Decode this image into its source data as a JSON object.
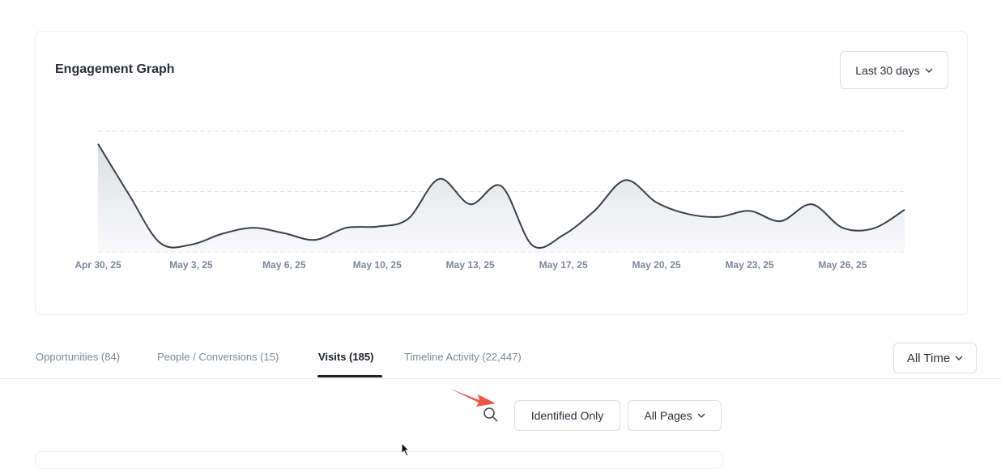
{
  "header": {
    "title": "Engagement Graph",
    "range_dropdown": "Last 30 days"
  },
  "chart_data": {
    "type": "line",
    "categories": [
      "Apr 30, 25",
      null,
      null,
      "May 3, 25",
      null,
      null,
      "May 6, 25",
      null,
      null,
      "May 10, 25",
      null,
      null,
      "May 13, 25",
      null,
      null,
      "May 17, 25",
      null,
      null,
      "May 20, 25",
      null,
      null,
      "May 23, 25",
      null,
      null,
      "May 26, 25",
      null,
      null
    ],
    "values": [
      1.79,
      0.95,
      0.15,
      0.12,
      0.3,
      0.4,
      0.31,
      0.2,
      0.4,
      0.42,
      0.55,
      1.21,
      0.79,
      1.09,
      0.11,
      0.28,
      0.68,
      1.19,
      0.82,
      0.63,
      0.58,
      0.68,
      0.51,
      0.79,
      0.4,
      0.39,
      0.7
    ],
    "color": "#3a3f47",
    "ylim": [
      0,
      2
    ],
    "yticks": [
      0,
      1,
      2
    ],
    "grid": true
  },
  "tabs": [
    "Opportunities (84)",
    "People / Conversions (15)",
    "Visits (185)",
    "Timeline Activity (22,447)"
  ],
  "time_filter": "All Time",
  "filters": {
    "identified": "Identified Only",
    "pages": "All Pages"
  }
}
